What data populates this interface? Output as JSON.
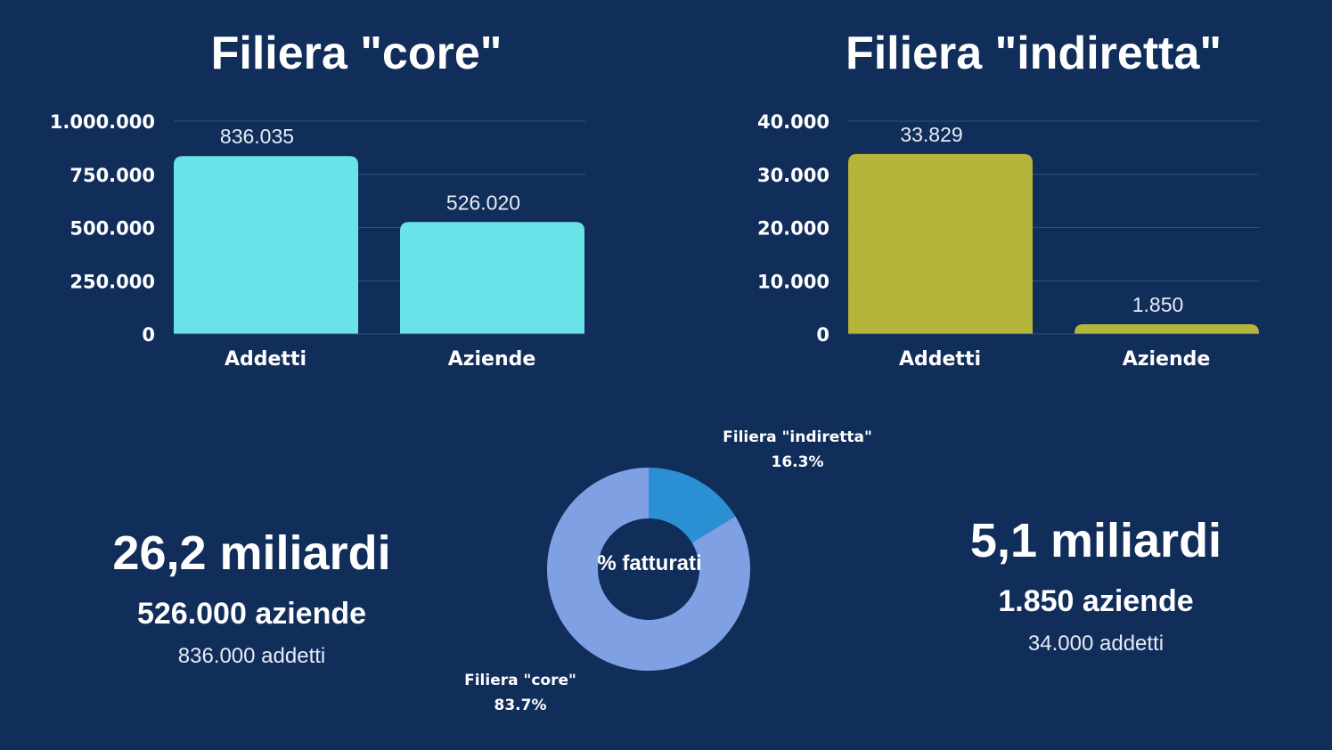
{
  "colors": {
    "background": "#112d5a",
    "core_bar": "#6ae3e8",
    "indiretta_bar": "#b5b53a",
    "donut_core": "#7fa0e2",
    "donut_indiretta": "#2b8fd4",
    "grid": "#34507a"
  },
  "chart_data": [
    {
      "type": "bar",
      "title": "Filiera \"core\"",
      "categories": [
        "Addetti",
        "Aziende"
      ],
      "values": [
        836035,
        526020
      ],
      "value_labels": [
        "836.035",
        "526.020"
      ],
      "ylim": [
        0,
        1000000
      ],
      "yticks": [
        0,
        250000,
        500000,
        750000,
        1000000
      ],
      "ytick_labels": [
        "0",
        "250.000",
        "500.000",
        "750.000",
        "1.000.000"
      ],
      "grid": true,
      "color": "#6ae3e8"
    },
    {
      "type": "bar",
      "title": "Filiera \"indiretta\"",
      "categories": [
        "Addetti",
        "Aziende"
      ],
      "values": [
        33829,
        1850
      ],
      "value_labels": [
        "33.829",
        "1.850"
      ],
      "ylim": [
        0,
        40000
      ],
      "yticks": [
        0,
        10000,
        20000,
        30000,
        40000
      ],
      "ytick_labels": [
        "0",
        "10.000",
        "20.000",
        "30.000",
        "40.000"
      ],
      "grid": true,
      "color": "#b5b53a"
    },
    {
      "type": "pie",
      "center_label": "% fatturati",
      "slices": [
        {
          "name": "Filiera \"indiretta\"",
          "value": 16.3,
          "label": "16.3%",
          "color": "#2b8fd4"
        },
        {
          "name": "Filiera \"core\"",
          "value": 83.7,
          "label": "83.7%",
          "color": "#7fa0e2"
        }
      ]
    }
  ],
  "stats": {
    "core": {
      "fatturato": "26,2 miliardi",
      "aziende": "526.000 aziende",
      "addetti": "836.000 addetti"
    },
    "indiretta": {
      "fatturato": "5,1 miliardi",
      "aziende": "1.850 aziende",
      "addetti": "34.000 addetti"
    }
  }
}
